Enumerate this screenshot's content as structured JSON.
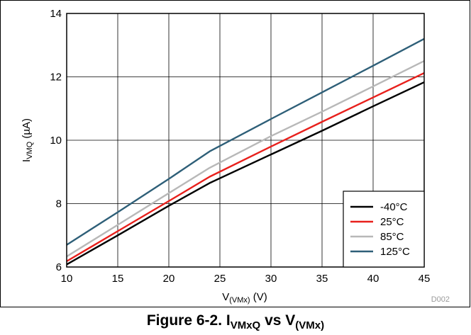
{
  "chart_data": {
    "type": "line",
    "xlabel": {
      "main": "V",
      "sub": "(VMx)",
      "unit": " (V)"
    },
    "ylabel": {
      "main": "I",
      "sub": "VMQ",
      "unit": " (µA)"
    },
    "xlim": [
      10,
      45
    ],
    "ylim": [
      6,
      14
    ],
    "x_ticks": [
      "10",
      "15",
      "20",
      "25",
      "30",
      "35",
      "40",
      "45"
    ],
    "y_ticks": [
      "6",
      "8",
      "10",
      "12",
      "14"
    ],
    "grid": true,
    "legend_position": "bottom-right",
    "series": [
      {
        "name": "-40°C",
        "color": "#000000",
        "x": [
          10,
          15,
          20,
          24,
          30,
          35,
          40,
          45
        ],
        "y": [
          6.08,
          7.0,
          7.93,
          8.65,
          9.55,
          10.3,
          11.07,
          11.83
        ]
      },
      {
        "name": "25°C",
        "color": "#e8201c",
        "x": [
          10,
          15,
          20,
          24,
          30,
          35,
          40,
          45
        ],
        "y": [
          6.18,
          7.13,
          8.08,
          8.85,
          9.8,
          10.58,
          11.35,
          12.12
        ]
      },
      {
        "name": "85°C",
        "color": "#b8b8b8",
        "x": [
          10,
          15,
          20,
          24,
          30,
          35,
          40,
          45
        ],
        "y": [
          6.33,
          7.33,
          8.33,
          9.13,
          10.13,
          10.9,
          11.7,
          12.5
        ]
      },
      {
        "name": "125°C",
        "color": "#2e5f78",
        "x": [
          10,
          15,
          20,
          24,
          30,
          35,
          40,
          45
        ],
        "y": [
          6.7,
          7.73,
          8.78,
          9.65,
          10.67,
          11.51,
          12.35,
          13.2
        ]
      }
    ]
  },
  "doc_id": "D002",
  "caption": {
    "prefix": "Figure 6-2. I",
    "sub1": "VMxQ",
    "mid": " vs V",
    "sub2": "(VMx)"
  }
}
